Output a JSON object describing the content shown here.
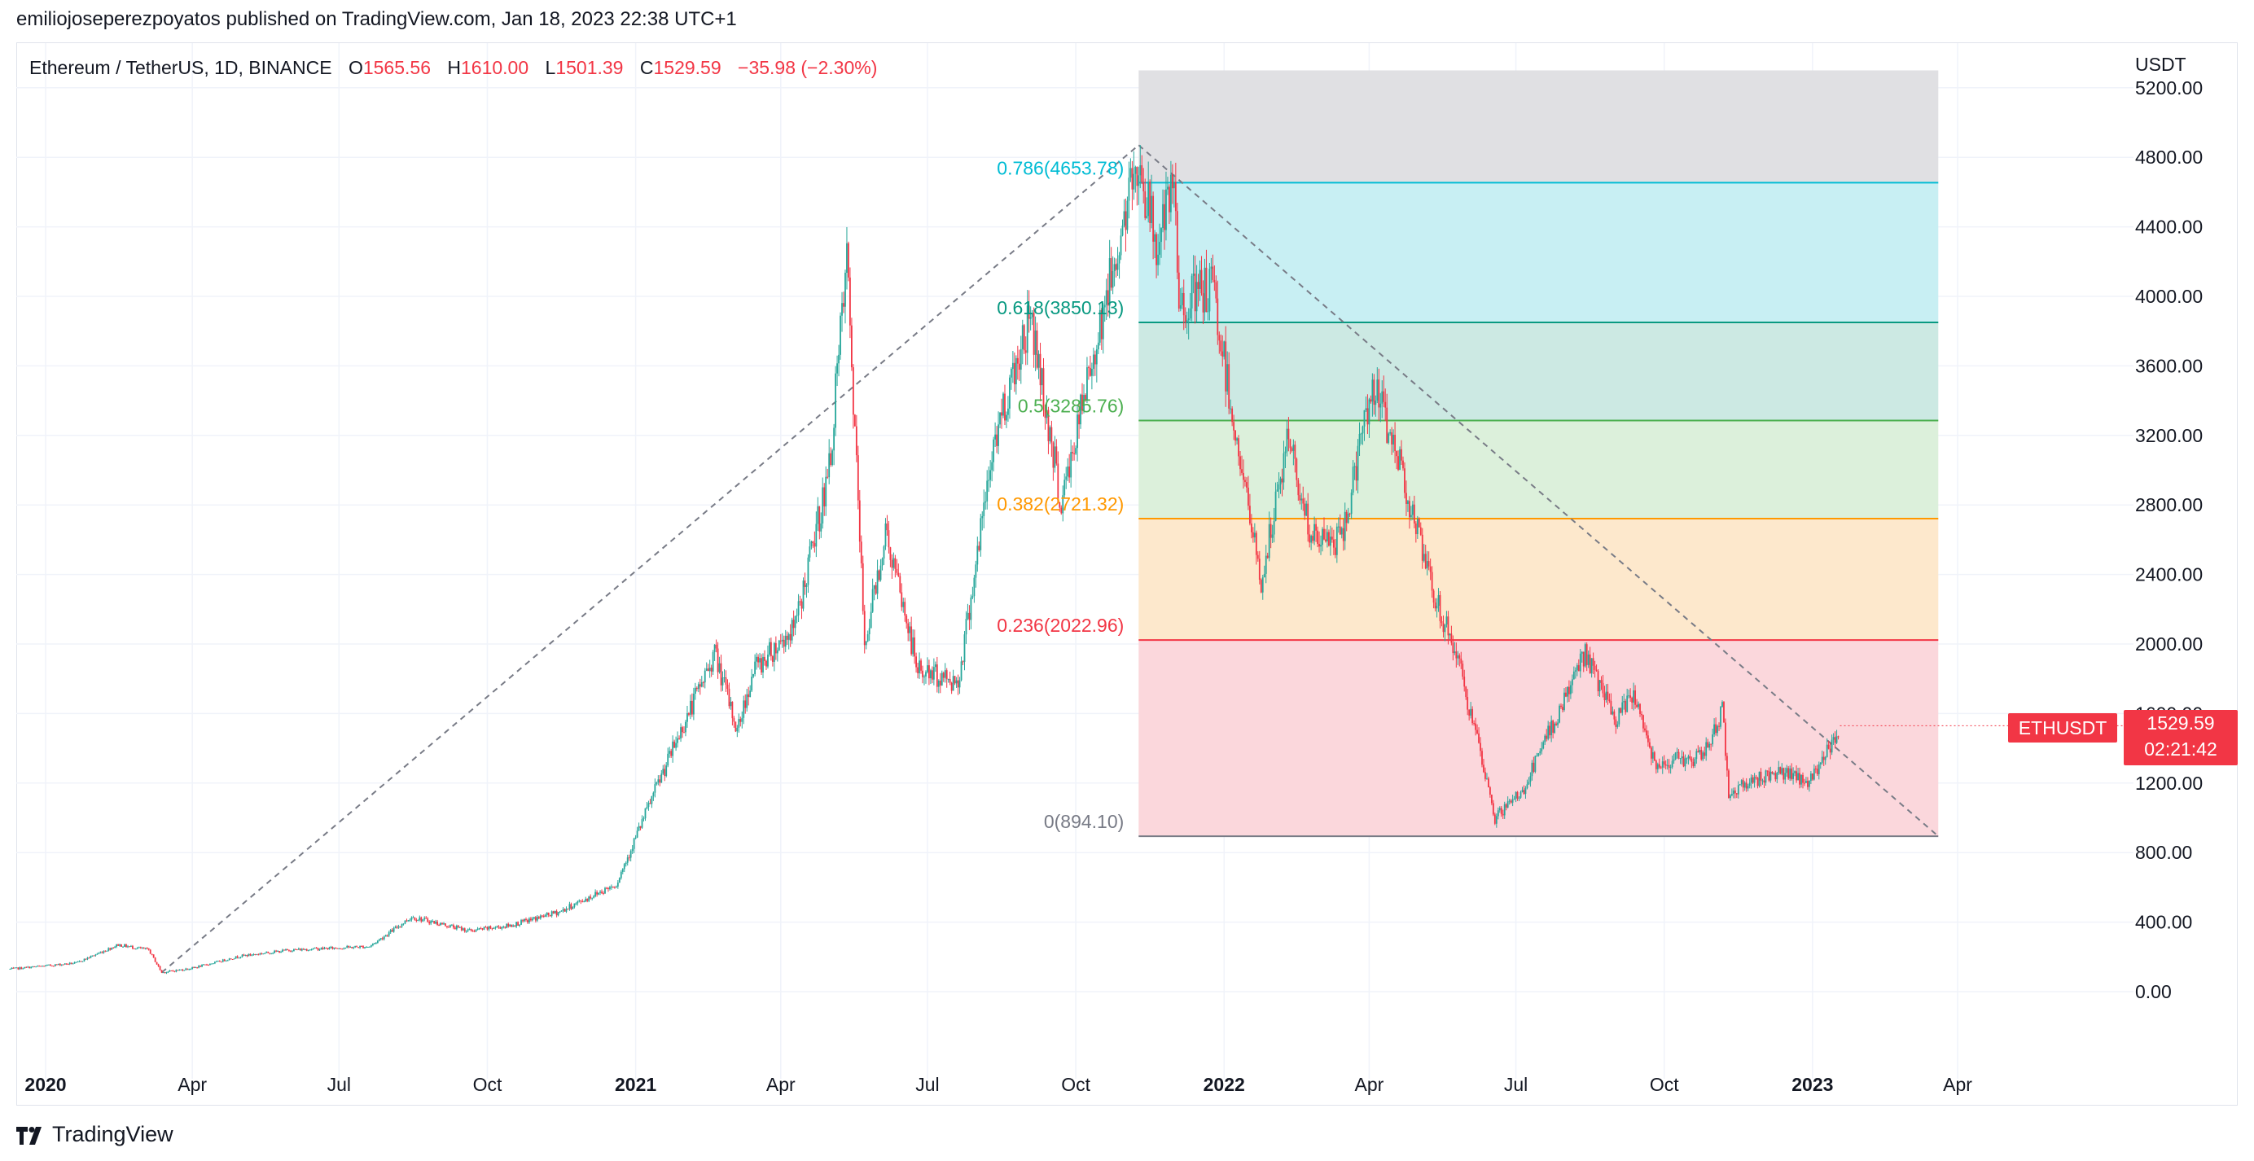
{
  "publisher_line": "emiliojoseperezpoyatos published on TradingView.com, Jan 18, 2023 22:38 UTC+1",
  "legend": {
    "symbol": "Ethereum / TetherUS, 1D, BINANCE",
    "open_label": "O",
    "open": "1565.56",
    "high_label": "H",
    "high": "1610.00",
    "low_label": "L",
    "low": "1501.39",
    "close_label": "C",
    "close": "1529.59",
    "change": "−35.98 (−2.30%)"
  },
  "currency": "USDT",
  "price_tag": {
    "symbol": "ETHUSDT",
    "price": "1529.59",
    "countdown": "02:21:42"
  },
  "footer_logo_text": "TradingView",
  "colors": {
    "up": "#26a69a",
    "down": "#f23645",
    "fib_gray": "#e0e0e3",
    "fib_786": "#c8eff3",
    "fib_618": "#cce9e3",
    "fib_5": "#dcf0db",
    "fib_382": "#fde8cc",
    "fib_236": "#fbd7dc"
  },
  "chart_data": {
    "type": "candlestick",
    "title": "Ethereum / TetherUS, 1D, BINANCE",
    "ylim": [
      -400,
      5300
    ],
    "y_ticks": [
      "5200.00",
      "4800.00",
      "4400.00",
      "4000.00",
      "3600.00",
      "3200.00",
      "2800.00",
      "2400.00",
      "2000.00",
      "1600.00",
      "1200.00",
      "800.00",
      "400.00",
      "0.00"
    ],
    "x_ticks": [
      {
        "label": "2020",
        "date": "2020-01-01",
        "bold": true
      },
      {
        "label": "Apr",
        "date": "2020-04-01"
      },
      {
        "label": "Jul",
        "date": "2020-07-01"
      },
      {
        "label": "Oct",
        "date": "2020-10-01"
      },
      {
        "label": "2021",
        "date": "2021-01-01",
        "bold": true
      },
      {
        "label": "Apr",
        "date": "2021-04-01"
      },
      {
        "label": "Jul",
        "date": "2021-07-01"
      },
      {
        "label": "Oct",
        "date": "2021-10-01"
      },
      {
        "label": "2022",
        "date": "2022-01-01",
        "bold": true
      },
      {
        "label": "Apr",
        "date": "2022-04-01"
      },
      {
        "label": "Jul",
        "date": "2022-07-01"
      },
      {
        "label": "Oct",
        "date": "2022-10-01"
      },
      {
        "label": "2023",
        "date": "2023-01-01",
        "bold": true
      },
      {
        "label": "Apr",
        "date": "2023-04-01"
      }
    ],
    "price_path": [
      [
        "2019-12-10",
        130
      ],
      [
        "2020-01-20",
        165
      ],
      [
        "2020-02-15",
        270
      ],
      [
        "2020-03-05",
        240
      ],
      [
        "2020-03-13",
        110
      ],
      [
        "2020-04-01",
        135
      ],
      [
        "2020-05-01",
        205
      ],
      [
        "2020-06-01",
        240
      ],
      [
        "2020-07-20",
        260
      ],
      [
        "2020-08-15",
        430
      ],
      [
        "2020-09-20",
        350
      ],
      [
        "2020-10-15",
        380
      ],
      [
        "2020-11-15",
        460
      ],
      [
        "2020-12-20",
        620
      ],
      [
        "2021-01-15",
        1200
      ],
      [
        "2021-02-19",
        1950
      ],
      [
        "2021-03-05",
        1500
      ],
      [
        "2021-03-15",
        1850
      ],
      [
        "2021-04-10",
        2100
      ],
      [
        "2021-05-01",
        3000
      ],
      [
        "2021-05-12",
        4200
      ],
      [
        "2021-05-23",
        2000
      ],
      [
        "2021-06-05",
        2650
      ],
      [
        "2021-06-25",
        1850
      ],
      [
        "2021-07-20",
        1780
      ],
      [
        "2021-08-12",
        3200
      ],
      [
        "2021-09-03",
        3900
      ],
      [
        "2021-09-22",
        2800
      ],
      [
        "2021-10-15",
        3800
      ],
      [
        "2021-11-09",
        4790
      ],
      [
        "2021-11-20",
        4300
      ],
      [
        "2021-12-01",
        4600
      ],
      [
        "2021-12-04",
        3950
      ],
      [
        "2021-12-25",
        4050
      ],
      [
        "2022-01-10",
        3100
      ],
      [
        "2022-01-24",
        2350
      ],
      [
        "2022-02-10",
        3200
      ],
      [
        "2022-02-24",
        2600
      ],
      [
        "2022-03-15",
        2600
      ],
      [
        "2022-04-03",
        3500
      ],
      [
        "2022-04-20",
        3050
      ],
      [
        "2022-05-10",
        2300
      ],
      [
        "2022-05-25",
        1950
      ],
      [
        "2022-06-18",
        1000
      ],
      [
        "2022-07-05",
        1150
      ],
      [
        "2022-08-13",
        1950
      ],
      [
        "2022-09-01",
        1550
      ],
      [
        "2022-09-12",
        1720
      ],
      [
        "2022-09-25",
        1320
      ],
      [
        "2022-10-25",
        1350
      ],
      [
        "2022-11-06",
        1620
      ],
      [
        "2022-11-10",
        1150
      ],
      [
        "2022-12-10",
        1270
      ],
      [
        "2022-12-30",
        1200
      ],
      [
        "2023-01-18",
        1530
      ]
    ],
    "trend_line": {
      "from": [
        "2020-03-13",
        110
      ],
      "to": [
        "2021-11-09",
        4870
      ]
    },
    "fib_line": {
      "from": [
        "2021-11-09",
        4870
      ],
      "to": [
        "2023-03-20",
        894.1
      ]
    },
    "fibonacci": {
      "x_range": [
        "2021-11-09",
        "2023-03-20"
      ],
      "top": 5300,
      "levels": [
        {
          "ratio": "0.786",
          "value": 4653.78,
          "label": "0.786(4653.78)",
          "line": "#00bcd4",
          "fill": "#c8eff3"
        },
        {
          "ratio": "0.618",
          "value": 3850.13,
          "label": "0.618(3850.13)",
          "line": "#089981",
          "fill": "#cce9e3"
        },
        {
          "ratio": "0.5",
          "value": 3285.76,
          "label": "0.5(3285.76)",
          "line": "#4caf50",
          "fill": "#dcf0db"
        },
        {
          "ratio": "0.382",
          "value": 2721.32,
          "label": "0.382(2721.32)",
          "line": "#ff9800",
          "fill": "#fde8cc"
        },
        {
          "ratio": "0.236",
          "value": 2022.96,
          "label": "0.236(2022.96)",
          "line": "#f23645",
          "fill": "#fbd7dc"
        },
        {
          "ratio": "0",
          "value": 894.1,
          "label": "0(894.10)",
          "line": "#787b86",
          "fill": ""
        }
      ]
    },
    "last_price": 1529.59
  }
}
